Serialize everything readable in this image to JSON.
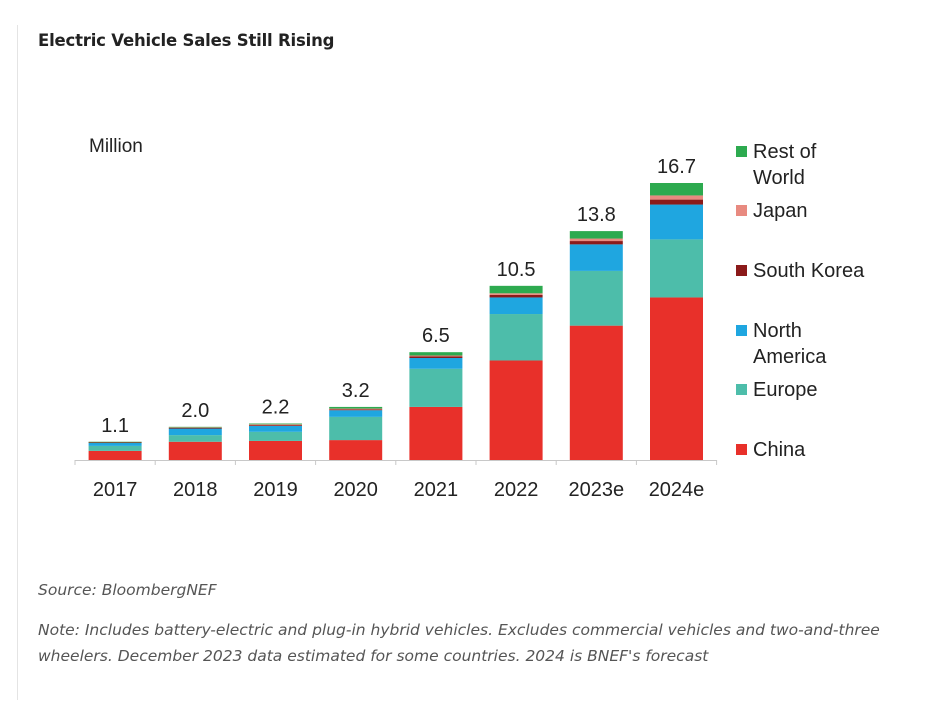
{
  "chart_data": {
    "type": "bar",
    "stacked": true,
    "title": "Electric Vehicle Sales Still Rising",
    "unit_label": "Million",
    "xlabel": "",
    "ylabel": "Million",
    "ylim": [
      0,
      16.7
    ],
    "grid": false,
    "legend_position": "right",
    "categories": [
      "2017",
      "2018",
      "2019",
      "2020",
      "2021",
      "2022",
      "2023e",
      "2024e"
    ],
    "totals": [
      "1.1",
      "2.0",
      "2.2",
      "3.2",
      "6.5",
      "10.5",
      "13.8",
      "16.7"
    ],
    "series": [
      {
        "name": "China",
        "color": "#e8302a",
        "values": [
          0.55,
          1.1,
          1.15,
          1.2,
          3.2,
          6.0,
          8.1,
          9.8
        ]
      },
      {
        "name": "Europe",
        "color": "#4dbdaa",
        "values": [
          0.3,
          0.4,
          0.55,
          1.4,
          2.3,
          2.8,
          3.3,
          3.5
        ]
      },
      {
        "name": "North America",
        "color": "#1fa6e0",
        "values": [
          0.2,
          0.4,
          0.35,
          0.4,
          0.65,
          1.0,
          1.6,
          2.1
        ]
      },
      {
        "name": "South Korea",
        "color": "#8b1a1a",
        "values": [
          0.01,
          0.03,
          0.05,
          0.05,
          0.1,
          0.15,
          0.2,
          0.3
        ]
      },
      {
        "name": "Japan",
        "color": "#e88a80",
        "values": [
          0.03,
          0.05,
          0.05,
          0.05,
          0.05,
          0.1,
          0.15,
          0.25
        ]
      },
      {
        "name": "Rest of World",
        "color": "#2daa4f",
        "values": [
          0.01,
          0.02,
          0.05,
          0.1,
          0.2,
          0.45,
          0.45,
          0.75
        ]
      }
    ],
    "legend_order": [
      "Rest of World",
      "Japan",
      "South Korea",
      "North America",
      "Europe",
      "China"
    ]
  },
  "legend": [
    {
      "lines": [
        "Rest of",
        "World"
      ],
      "color": "#2daa4f"
    },
    {
      "lines": [
        "Japan"
      ],
      "color": "#e88a80"
    },
    {
      "lines": [
        "South Korea"
      ],
      "color": "#8b1a1a"
    },
    {
      "lines": [
        "North",
        "America"
      ],
      "color": "#1fa6e0"
    },
    {
      "lines": [
        "Europe"
      ],
      "color": "#4dbdaa"
    },
    {
      "lines": [
        "China"
      ],
      "color": "#e8302a"
    }
  ],
  "footer": {
    "source": "Source: BloombergNEF",
    "note": "Note: Includes battery-electric and plug-in hybrid vehicles. Excludes commercial vehicles and two-and-three wheelers. December 2023 data estimated for some countries. 2024 is BNEF's forecast"
  }
}
